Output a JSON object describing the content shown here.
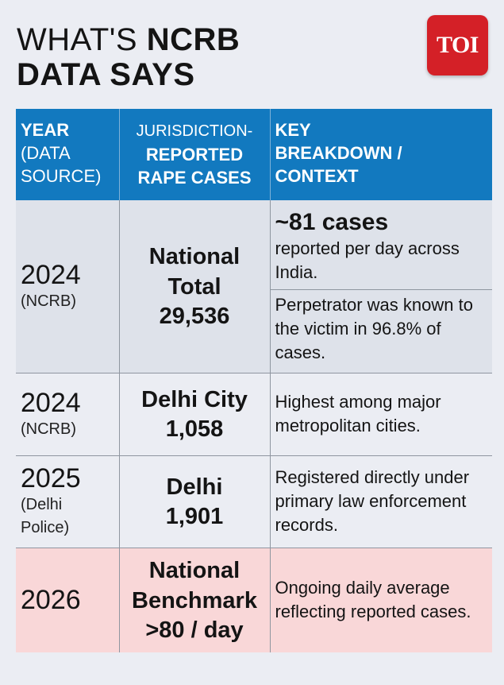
{
  "header": {
    "title_line1_prefix": "WHAT'S ",
    "title_line1_bold": "NCRB",
    "title_line2": "DATA SAYS",
    "logo_text": "TOI",
    "brand_color": "#d42027"
  },
  "table": {
    "header_color": "#1279bf",
    "columns": {
      "col1_line1": "YEAR",
      "col1_line2": "(DATA",
      "col1_line3": "SOURCE)",
      "col2_line1": "JURISDICTION-",
      "col2_line2": "REPORTED",
      "col2_line3": "RAPE CASES",
      "col3_line1": "KEY",
      "col3_line2": "BREAKDOWN /",
      "col3_line3": "CONTEXT"
    },
    "rows": [
      {
        "year": "2024",
        "source": "(NCRB)",
        "jurisdiction_line1": "National",
        "jurisdiction_line2": "Total",
        "value": "29,536",
        "context_highlight": "~81 cases",
        "context_part1": "reported per day across India.",
        "context_part2": "Perpetrator was known to the victim in 96.8% of cases."
      },
      {
        "year": "2024",
        "source": "(NCRB)",
        "jurisdiction_line1": "Delhi City",
        "value": "1,058",
        "context": "Highest among major metropolitan cities."
      },
      {
        "year": "2025",
        "source": "(Delhi Police)",
        "jurisdiction_line1": "Delhi",
        "value": "1,901",
        "context": "Registered directly under primary law enforcement records."
      },
      {
        "year": "2026",
        "jurisdiction_line1": "National",
        "jurisdiction_line2": "Benchmark",
        "value": ">80 / day",
        "context": "Ongoing daily average reflecting reported cases."
      }
    ]
  }
}
